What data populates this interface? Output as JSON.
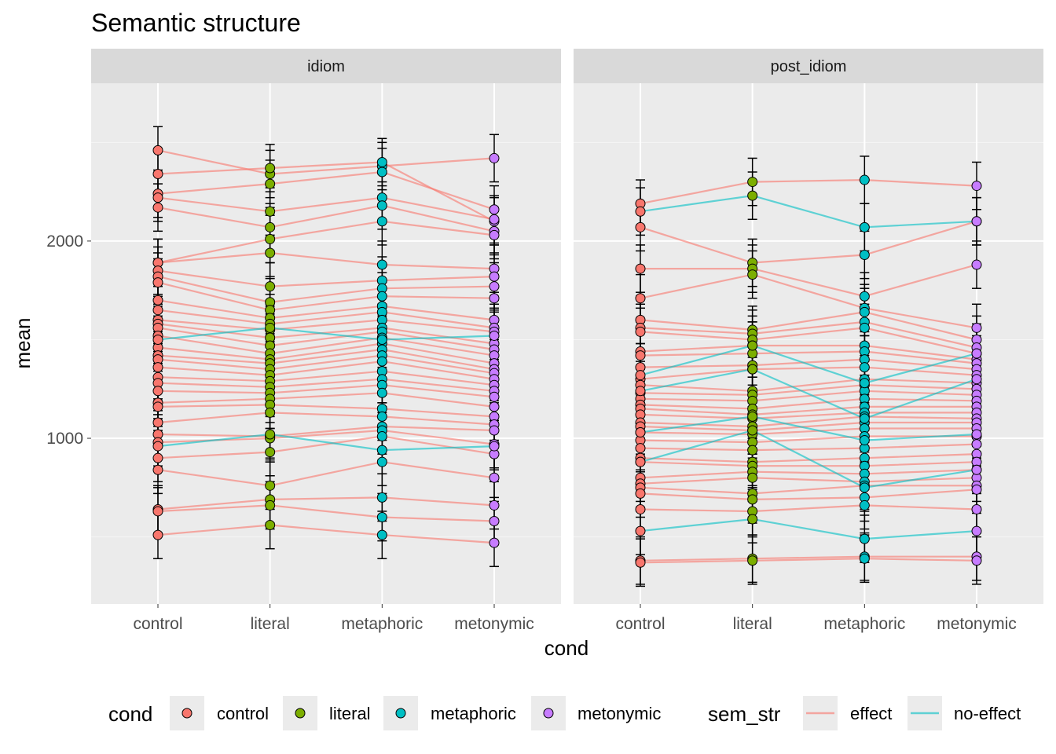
{
  "chart_data": {
    "type": "scatter",
    "title": "Semantic structure",
    "xlabel": "cond",
    "ylabel": "mean",
    "categories": [
      "control",
      "literal",
      "metaphoric",
      "metonymic"
    ],
    "yticks": [
      1000,
      2000
    ],
    "ylim": [
      160,
      2800
    ],
    "facets": [
      "idiom",
      "post_idiom"
    ],
    "grid": true,
    "legend_position": "bottom",
    "legend": {
      "cond": {
        "title": "cond",
        "items": [
          {
            "label": "control",
            "color": "#F8766D"
          },
          {
            "label": "literal",
            "color": "#7CAE00"
          },
          {
            "label": "metaphoric",
            "color": "#00BFC4"
          },
          {
            "label": "metonymic",
            "color": "#C77CFF"
          }
        ]
      },
      "sem_str": {
        "title": "sem_str",
        "items": [
          {
            "label": "effect",
            "color": "#F8766D"
          },
          {
            "label": "no-effect",
            "color": "#00BFC4"
          }
        ]
      }
    },
    "colors": {
      "effect": "#F8766D",
      "no-effect": "#00BFC4",
      "control": "#F8766D",
      "literal": "#7CAE00",
      "metaphoric": "#00BFC4",
      "metonymic": "#C77CFF"
    },
    "error_bar_halfwidth": 120,
    "panels": [
      {
        "facet": "idiom",
        "series": [
          {
            "sem_str": "effect",
            "values": [
              2460,
              2340,
              2380,
              2420
            ]
          },
          {
            "sem_str": "effect",
            "values": [
              2340,
              2370,
              2400,
              2100
            ]
          },
          {
            "sem_str": "effect",
            "values": [
              2240,
              2290,
              2350,
              2160
            ]
          },
          {
            "sem_str": "effect",
            "values": [
              2220,
              2150,
              2220,
              2110
            ]
          },
          {
            "sem_str": "effect",
            "values": [
              2170,
              2070,
              2180,
              2050
            ]
          },
          {
            "sem_str": "effect",
            "values": [
              1890,
              2010,
              2100,
              2030
            ]
          },
          {
            "sem_str": "effect",
            "values": [
              1890,
              1940,
              1880,
              1860
            ]
          },
          {
            "sem_str": "effect",
            "values": [
              1850,
              1770,
              1800,
              1820
            ]
          },
          {
            "sem_str": "effect",
            "values": [
              1820,
              1690,
              1760,
              1770
            ]
          },
          {
            "sem_str": "effect",
            "values": [
              1790,
              1650,
              1720,
              1710
            ]
          },
          {
            "sem_str": "effect",
            "values": [
              1700,
              1610,
              1670,
              1600
            ]
          },
          {
            "sem_str": "effect",
            "values": [
              1650,
              1580,
              1640,
              1560
            ]
          },
          {
            "sem_str": "effect",
            "values": [
              1600,
              1550,
              1600,
              1540
            ]
          },
          {
            "sem_str": "effect",
            "values": [
              1580,
              1510,
              1560,
              1480
            ]
          },
          {
            "sem_str": "effect",
            "values": [
              1560,
              1470,
              1540,
              1450
            ]
          },
          {
            "sem_str": "effect",
            "values": [
              1520,
              1430,
              1510,
              1420
            ]
          },
          {
            "sem_str": "effect",
            "values": [
              1460,
              1400,
              1480,
              1380
            ]
          },
          {
            "sem_str": "effect",
            "values": [
              1420,
              1380,
              1450,
              1350
            ]
          },
          {
            "sem_str": "effect",
            "values": [
              1400,
              1350,
              1420,
              1330
            ]
          },
          {
            "sem_str": "effect",
            "values": [
              1360,
              1320,
              1390,
              1300
            ]
          },
          {
            "sem_str": "effect",
            "values": [
              1310,
              1290,
              1340,
              1270
            ]
          },
          {
            "sem_str": "effect",
            "values": [
              1280,
              1260,
              1300,
              1240
            ]
          },
          {
            "sem_str": "effect",
            "values": [
              1240,
              1230,
              1270,
              1210
            ]
          },
          {
            "sem_str": "effect",
            "values": [
              1180,
              1200,
              1230,
              1160
            ]
          },
          {
            "sem_str": "effect",
            "values": [
              1160,
              1170,
              1150,
              1110
            ]
          },
          {
            "sem_str": "effect",
            "values": [
              1080,
              1130,
              1110,
              1070
            ]
          },
          {
            "sem_str": "effect",
            "values": [
              1020,
              1010,
              1060,
              1040
            ]
          },
          {
            "sem_str": "effect",
            "values": [
              980,
              1000,
              1040,
              970
            ]
          },
          {
            "sem_str": "effect",
            "values": [
              900,
              930,
              1010,
              920
            ]
          },
          {
            "sem_str": "effect",
            "values": [
              840,
              760,
              880,
              800
            ]
          },
          {
            "sem_str": "effect",
            "values": [
              640,
              690,
              700,
              660
            ]
          },
          {
            "sem_str": "effect",
            "values": [
              630,
              660,
              600,
              580
            ]
          },
          {
            "sem_str": "effect",
            "values": [
              510,
              560,
              510,
              470
            ]
          },
          {
            "sem_str": "no-effect",
            "values": [
              1500,
              1560,
              1500,
              1520
            ]
          },
          {
            "sem_str": "no-effect",
            "values": [
              960,
              1020,
              940,
              960
            ]
          }
        ]
      },
      {
        "facet": "post_idiom",
        "series": [
          {
            "sem_str": "effect",
            "values": [
              2190,
              2300,
              2310,
              2280
            ]
          },
          {
            "sem_str": "effect",
            "values": [
              2070,
              1890,
              1930,
              2100
            ]
          },
          {
            "sem_str": "effect",
            "values": [
              1860,
              1860,
              1720,
              1880
            ]
          },
          {
            "sem_str": "effect",
            "values": [
              1710,
              1830,
              1660,
              1560
            ]
          },
          {
            "sem_str": "effect",
            "values": [
              1600,
              1550,
              1640,
              1500
            ]
          },
          {
            "sem_str": "effect",
            "values": [
              1560,
              1530,
              1590,
              1460
            ]
          },
          {
            "sem_str": "effect",
            "values": [
              1540,
              1500,
              1560,
              1430
            ]
          },
          {
            "sem_str": "effect",
            "values": [
              1440,
              1470,
              1470,
              1400
            ]
          },
          {
            "sem_str": "effect",
            "values": [
              1420,
              1430,
              1440,
              1380
            ]
          },
          {
            "sem_str": "effect",
            "values": [
              1360,
              1370,
              1400,
              1350
            ]
          },
          {
            "sem_str": "effect",
            "values": [
              1300,
              1350,
              1360,
              1320
            ]
          },
          {
            "sem_str": "effect",
            "values": [
              1270,
              1240,
              1300,
              1280
            ]
          },
          {
            "sem_str": "effect",
            "values": [
              1230,
              1220,
              1270,
              1250
            ]
          },
          {
            "sem_str": "effect",
            "values": [
              1200,
              1190,
              1240,
              1220
            ]
          },
          {
            "sem_str": "effect",
            "values": [
              1170,
              1150,
              1200,
              1190
            ]
          },
          {
            "sem_str": "effect",
            "values": [
              1150,
              1120,
              1160,
              1160
            ]
          },
          {
            "sem_str": "effect",
            "values": [
              1120,
              1100,
              1130,
              1130
            ]
          },
          {
            "sem_str": "effect",
            "values": [
              1080,
              1060,
              1110,
              1100
            ]
          },
          {
            "sem_str": "effect",
            "values": [
              1060,
              1040,
              1080,
              1080
            ]
          },
          {
            "sem_str": "effect",
            "values": [
              1030,
              1020,
              1050,
              1050
            ]
          },
          {
            "sem_str": "effect",
            "values": [
              990,
              980,
              1010,
              1010
            ]
          },
          {
            "sem_str": "effect",
            "values": [
              950,
              940,
              950,
              970
            ]
          },
          {
            "sem_str": "effect",
            "values": [
              900,
              880,
              900,
              920
            ]
          },
          {
            "sem_str": "effect",
            "values": [
              880,
              860,
              860,
              880
            ]
          },
          {
            "sem_str": "effect",
            "values": [
              800,
              830,
              820,
              840
            ]
          },
          {
            "sem_str": "effect",
            "values": [
              770,
              800,
              780,
              800
            ]
          },
          {
            "sem_str": "effect",
            "values": [
              750,
              720,
              760,
              760
            ]
          },
          {
            "sem_str": "effect",
            "values": [
              720,
              690,
              700,
              740
            ]
          },
          {
            "sem_str": "effect",
            "values": [
              640,
              630,
              660,
              640
            ]
          },
          {
            "sem_str": "effect",
            "values": [
              380,
              390,
              400,
              400
            ]
          },
          {
            "sem_str": "effect",
            "values": [
              370,
              380,
              390,
              380
            ]
          },
          {
            "sem_str": "no-effect",
            "values": [
              2150,
              2230,
              2070,
              2100
            ]
          },
          {
            "sem_str": "no-effect",
            "values": [
              1320,
              1470,
              1280,
              1430
            ]
          },
          {
            "sem_str": "no-effect",
            "values": [
              1240,
              1350,
              1100,
              1300
            ]
          },
          {
            "sem_str": "no-effect",
            "values": [
              1030,
              1110,
              990,
              1020
            ]
          },
          {
            "sem_str": "no-effect",
            "values": [
              880,
              1040,
              750,
              840
            ]
          },
          {
            "sem_str": "no-effect",
            "values": [
              530,
              590,
              490,
              530
            ]
          }
        ]
      }
    ]
  }
}
